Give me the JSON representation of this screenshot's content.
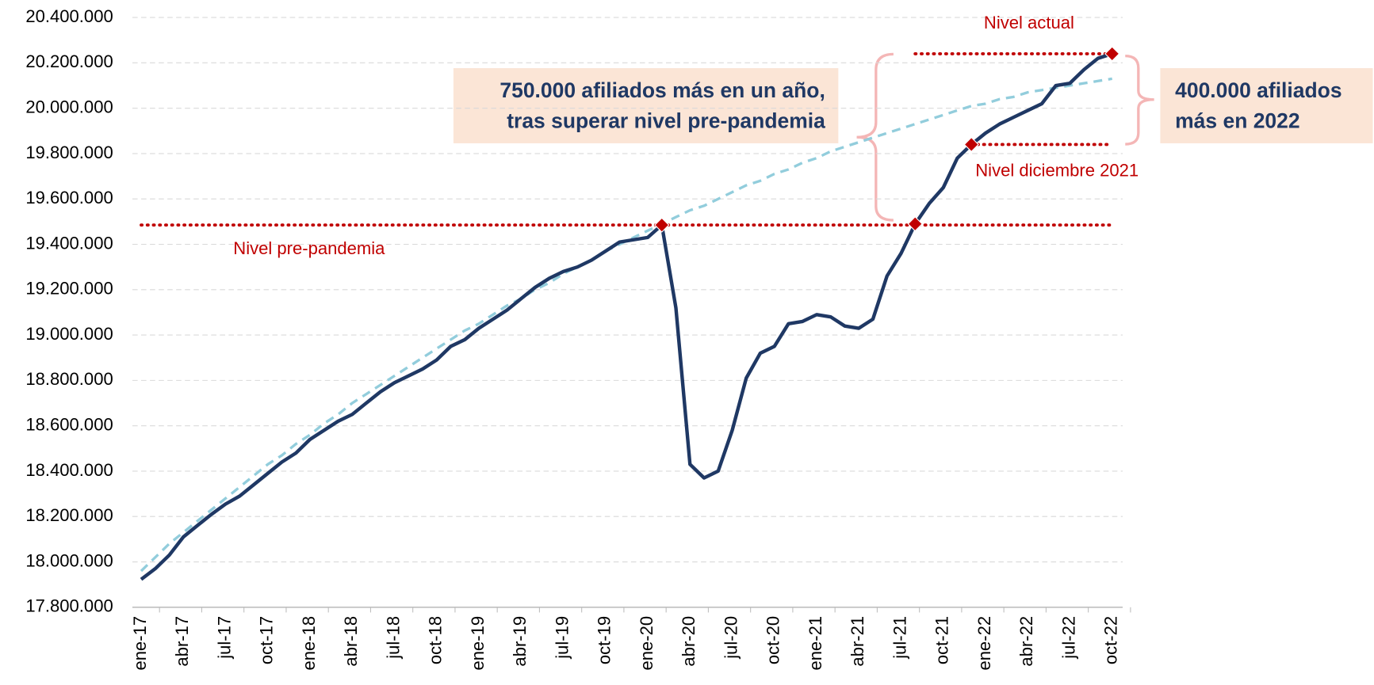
{
  "chart_data": {
    "type": "line",
    "categories": [
      "ene-17",
      null,
      null,
      "abr-17",
      null,
      null,
      "jul-17",
      null,
      null,
      "oct-17",
      null,
      null,
      "ene-18",
      null,
      null,
      "abr-18",
      null,
      null,
      "jul-18",
      null,
      null,
      "oct-18",
      null,
      null,
      "ene-19",
      null,
      null,
      "abr-19",
      null,
      null,
      "jul-19",
      null,
      null,
      "oct-19",
      null,
      null,
      "ene-20",
      null,
      null,
      "abr-20",
      null,
      null,
      "jul-20",
      null,
      null,
      "oct-20",
      null,
      null,
      "ene-21",
      null,
      null,
      "abr-21",
      null,
      null,
      "jul-21",
      null,
      null,
      "oct-21",
      null,
      null,
      "ene-22",
      null,
      null,
      "abr-22",
      null,
      null,
      "jul-22",
      null,
      null,
      "oct-22"
    ],
    "series": [
      {
        "color": "#1f3864",
        "values": [
          17923000,
          17970000,
          18030000,
          18110000,
          18160000,
          18210000,
          18255000,
          18290000,
          18340000,
          18390000,
          18440000,
          18480000,
          18540000,
          18580000,
          18620000,
          18650000,
          18700000,
          18750000,
          18790000,
          18820000,
          18850000,
          18890000,
          18950000,
          18980000,
          19030000,
          19070000,
          19110000,
          19160000,
          19210000,
          19250000,
          19280000,
          19300000,
          19330000,
          19370000,
          19410000,
          19420000,
          19430000,
          19485000,
          19120000,
          18430000,
          18370000,
          18400000,
          18580000,
          18810000,
          18920000,
          18950000,
          19050000,
          19060000,
          19090000,
          19080000,
          19040000,
          19030000,
          19070000,
          19260000,
          19360000,
          19490000,
          19580000,
          19650000,
          19780000,
          19840000,
          19890000,
          19930000,
          19960000,
          19990000,
          20020000,
          20100000,
          20110000,
          20170000,
          20220000,
          20240000
        ]
      },
      {
        "color": "#92cddc",
        "dashed": true,
        "values": [
          17960000,
          18020000,
          18080000,
          18130000,
          18180000,
          18230000,
          18280000,
          18330000,
          18380000,
          18430000,
          18470000,
          18520000,
          18560000,
          18610000,
          18650000,
          18700000,
          18740000,
          18780000,
          18820000,
          18860000,
          18900000,
          18940000,
          18980000,
          19020000,
          19050000,
          19090000,
          19130000,
          19160000,
          19200000,
          19230000,
          19270000,
          19300000,
          19330000,
          19370000,
          19400000,
          19430000,
          19460000,
          19490000,
          19520000,
          19550000,
          19570000,
          19600000,
          19630000,
          19660000,
          19680000,
          19710000,
          19730000,
          19760000,
          19780000,
          19810000,
          19830000,
          19850000,
          19870000,
          19890000,
          19910000,
          19930000,
          19950000,
          19970000,
          19990000,
          20010000,
          20020000,
          20040000,
          20050000,
          20070000,
          20080000,
          20090000,
          20100000,
          20110000,
          20120000,
          20130000
        ]
      }
    ],
    "ylim": [
      17800000,
      20400000
    ],
    "yticks": [
      {
        "value": 17800000,
        "label": "17.800.000"
      },
      {
        "value": 18000000,
        "label": "18.000.000"
      },
      {
        "value": 18200000,
        "label": "18.200.000"
      },
      {
        "value": 18400000,
        "label": "18.400.000"
      },
      {
        "value": 18600000,
        "label": "18.600.000"
      },
      {
        "value": 18800000,
        "label": "18.800.000"
      },
      {
        "value": 19000000,
        "label": "19.000.000"
      },
      {
        "value": 19200000,
        "label": "19.200.000"
      },
      {
        "value": 19400000,
        "label": "19.400.000"
      },
      {
        "value": 19600000,
        "label": "19.600.000"
      },
      {
        "value": 19800000,
        "label": "19.800.000"
      },
      {
        "value": 20000000,
        "label": "20.000.000"
      },
      {
        "value": 20200000,
        "label": "20.200.000"
      },
      {
        "value": 20400000,
        "label": "20.400.000"
      }
    ],
    "grid": true,
    "highlight_points": [
      37,
      55,
      59,
      69
    ],
    "marker_color": "#c00000",
    "reference_lines": [
      {
        "label": "Nivel pre-pandemia",
        "value": 19485000
      },
      {
        "label": "Nivel diciembre 2021",
        "value": 19840000
      },
      {
        "label": "Nivel actual",
        "value": 20240000
      }
    ],
    "callouts": [
      {
        "lines": [
          "750.000 afiliados más en un año,",
          "tras superar nivel pre-pandemia"
        ]
      },
      {
        "lines": [
          "400.000 afiliados",
          "más en 2022"
        ]
      }
    ]
  }
}
